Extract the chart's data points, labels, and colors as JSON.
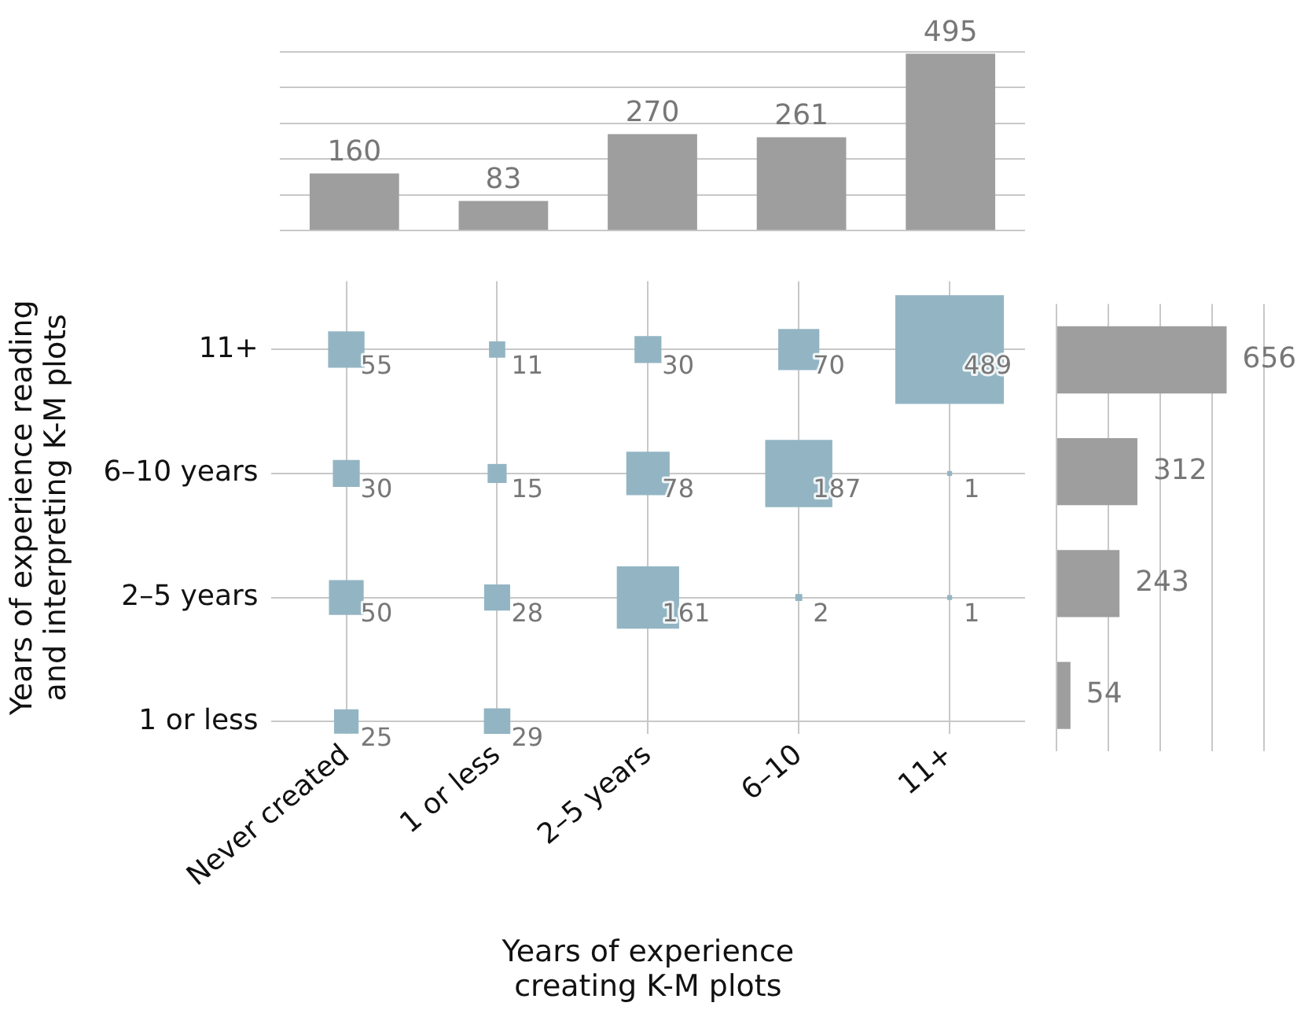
{
  "chart_data": [
    {
      "type": "bar",
      "categories": [
        null,
        null,
        null,
        null,
        null
      ],
      "values": [
        160,
        83,
        270,
        261,
        495
      ],
      "color": "#9e9e9e",
      "ylim": [
        0,
        500
      ],
      "yticks": [
        {
          "value": 0,
          "label": null
        },
        {
          "value": 100,
          "label": null
        },
        {
          "value": 200,
          "label": null
        },
        {
          "value": 300,
          "label": null
        },
        {
          "value": 400,
          "label": null
        },
        {
          "value": 500,
          "label": null
        }
      ],
      "grid": "y",
      "data_labels": true
    },
    {
      "type": "heatmap",
      "categories": [
        "Never created",
        "1 or less",
        "2–5 years",
        "6–10",
        "11+"
      ],
      "y_categories": [
        "11+",
        "6–10 years",
        "2–5 years",
        "1 or less"
      ],
      "cells": [
        [
          55,
          11,
          30,
          70,
          489
        ],
        [
          30,
          15,
          78,
          187,
          1
        ],
        [
          50,
          28,
          161,
          2,
          1
        ],
        [
          25,
          29,
          null,
          null,
          null
        ]
      ],
      "color": "#93b5c3",
      "marker": "square",
      "grid": true,
      "data_labels": true,
      "xlabel": "Years of experience\ncreating K-M plots",
      "ylabel": "Years of experience reading\nand interpreting K-M plots"
    },
    {
      "type": "bar",
      "orientation": "horizontal",
      "categories": [
        null,
        null,
        null,
        null
      ],
      "values": [
        656,
        312,
        243,
        54
      ],
      "color": "#9e9e9e",
      "xlim": [
        0,
        800
      ],
      "xticks": [
        {
          "value": 0,
          "label": null
        },
        {
          "value": 200,
          "label": null
        },
        {
          "value": 400,
          "label": null
        },
        {
          "value": 600,
          "label": null
        },
        {
          "value": 800,
          "label": null
        }
      ],
      "grid": "x",
      "data_labels": true
    }
  ]
}
